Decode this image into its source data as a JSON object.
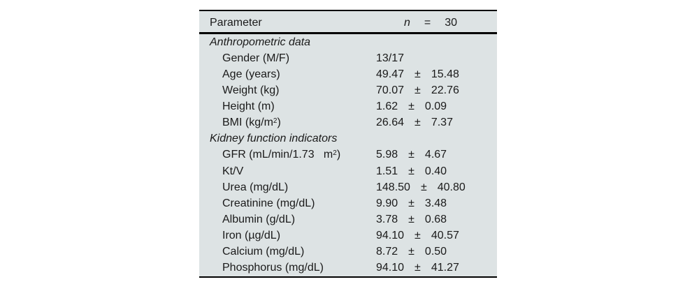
{
  "table": {
    "header": {
      "param_label": "Parameter",
      "n_label": "n",
      "equals": "=",
      "n_value": "30"
    },
    "colors": {
      "table_bg": "#dde3e4",
      "rule": "#000000",
      "text": "#1a1a1a",
      "page_bg": "#ffffff"
    },
    "rows": [
      {
        "type": "section",
        "label": "Anthropometric data",
        "mean": "",
        "pm": "",
        "sd": ""
      },
      {
        "type": "item",
        "label": "Gender (M/F)",
        "mean": "13/17",
        "pm": "",
        "sd": ""
      },
      {
        "type": "item",
        "label": "Age (years)",
        "mean": "49.47",
        "pm": "±",
        "sd": "15.48"
      },
      {
        "type": "item",
        "label": "Weight (kg)",
        "mean": "70.07",
        "pm": "±",
        "sd": "22.76"
      },
      {
        "type": "item",
        "label": "Height (m)",
        "mean": "1.62",
        "pm": "±",
        "sd": "0.09"
      },
      {
        "type": "item",
        "label": "BMI (kg/m^{2})",
        "mean": "26.64",
        "pm": "±",
        "sd": "7.37"
      },
      {
        "type": "section",
        "label": "Kidney function indicators",
        "mean": "",
        "pm": "",
        "sd": ""
      },
      {
        "type": "item",
        "label": "GFR (mL/min/1.73   m^{2})",
        "mean": "5.98",
        "pm": "±",
        "sd": "4.67"
      },
      {
        "type": "item",
        "label": "Kt/V",
        "mean": "1.51",
        "pm": "±",
        "sd": "0.40"
      },
      {
        "type": "item",
        "label": "Urea (mg/dL)",
        "mean": "148.50",
        "pm": "±",
        "sd": "40.80"
      },
      {
        "type": "item",
        "label": "Creatinine (mg/dL)",
        "mean": "9.90",
        "pm": "±",
        "sd": "3.48"
      },
      {
        "type": "item",
        "label": "Albumin (g/dL)",
        "mean": "3.78",
        "pm": "±",
        "sd": "0.68"
      },
      {
        "type": "item",
        "label": "Iron (µg/dL)",
        "mean": "94.10",
        "pm": "±",
        "sd": "40.57"
      },
      {
        "type": "item",
        "label": "Calcium (mg/dL)",
        "mean": "8.72",
        "pm": "±",
        "sd": "0.50"
      },
      {
        "type": "item",
        "label": "Phosphorus (mg/dL)",
        "mean": "94.10",
        "pm": "±",
        "sd": "41.27"
      }
    ]
  }
}
